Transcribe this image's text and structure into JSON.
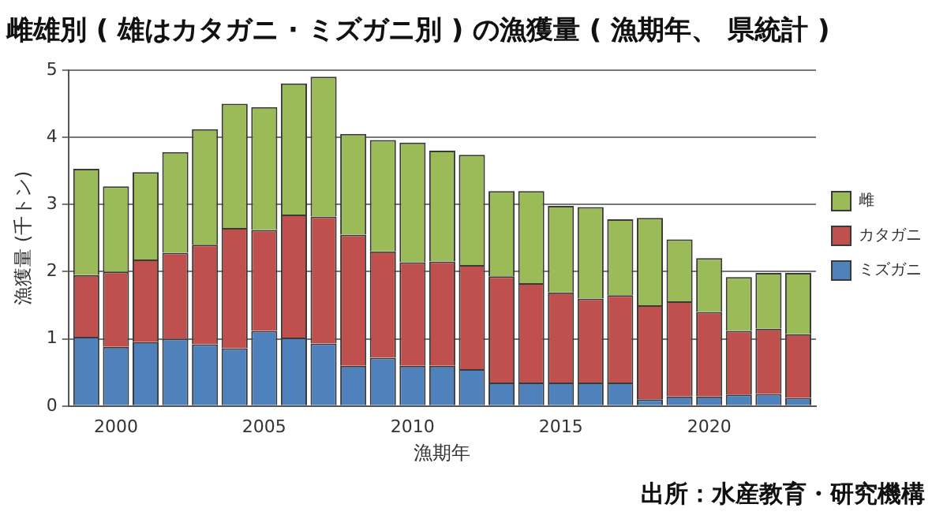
{
  "chart_data": {
    "type": "bar",
    "title": "雌雄別 ( 雄はカタガニ · ミズガニ別 ) の漁獲量 ( 漁期年、 県統計 )",
    "xlabel": "漁期年",
    "ylabel": "漁獲量 (千トン)",
    "x": [
      1999,
      2000,
      2001,
      2002,
      2003,
      2004,
      2005,
      2006,
      2007,
      2008,
      2009,
      2010,
      2011,
      2012,
      2013,
      2014,
      2015,
      2016,
      2017,
      2018,
      2019,
      2020,
      2021,
      2022,
      2023
    ],
    "stacked": true,
    "series": [
      {
        "name": "ミズガニ",
        "color": "#4f81bd",
        "values": [
          1.03,
          0.88,
          0.95,
          1.0,
          0.92,
          0.86,
          1.12,
          1.02,
          0.93,
          0.6,
          0.72,
          0.6,
          0.6,
          0.55,
          0.35,
          0.35,
          0.35,
          0.35,
          0.35,
          0.1,
          0.14,
          0.14,
          0.17,
          0.18,
          0.12
        ]
      },
      {
        "name": "カタガニ",
        "color": "#c0504d",
        "values": [
          0.92,
          1.12,
          1.23,
          1.28,
          1.48,
          1.79,
          1.5,
          1.83,
          1.89,
          1.95,
          1.58,
          1.54,
          1.55,
          1.55,
          1.58,
          1.48,
          1.34,
          1.25,
          1.3,
          1.4,
          1.42,
          1.26,
          0.95,
          0.97,
          0.95
        ]
      },
      {
        "name": "雌",
        "color": "#9bbb59",
        "values": [
          1.58,
          1.27,
          1.3,
          1.5,
          1.72,
          1.85,
          1.83,
          1.95,
          2.08,
          1.5,
          1.66,
          1.78,
          1.65,
          1.64,
          1.27,
          1.37,
          1.29,
          1.36,
          1.13,
          1.3,
          0.92,
          0.8,
          0.8,
          0.83,
          0.91
        ]
      }
    ],
    "xlim": [
      1998.4,
      2023.6
    ],
    "xticks": [
      2000,
      2005,
      2010,
      2015,
      2020
    ],
    "ylim": [
      0,
      5
    ],
    "yticks": [
      0,
      1,
      2,
      3,
      4,
      5
    ],
    "grid": "y",
    "legend": "right",
    "annotations": [
      "出所：水産教育・研究機構"
    ]
  }
}
